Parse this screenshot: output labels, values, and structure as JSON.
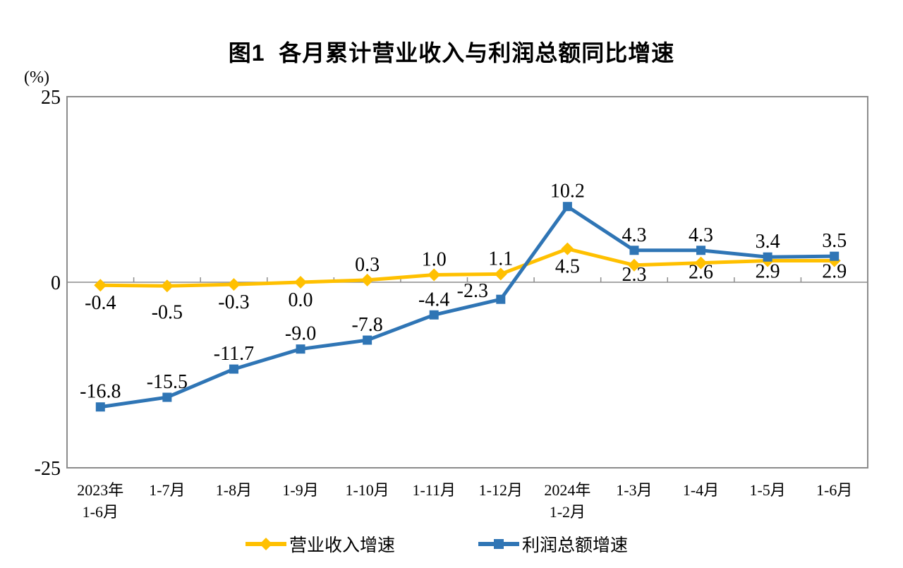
{
  "chart_data": {
    "type": "line",
    "title": "图1  各月累计营业收入与利润总额同比增速",
    "y_unit_label": "(%)",
    "ylim": [
      -25,
      25
    ],
    "yticks": [
      {
        "value": 25,
        "label": "25"
      },
      {
        "value": 0,
        "label": "0"
      },
      {
        "value": -25,
        "label": "-25"
      }
    ],
    "grid": false,
    "legend_position": "bottom",
    "axis_color": "#8C8C8C",
    "categories": [
      {
        "lines": [
          "2023年",
          "1-6月"
        ]
      },
      {
        "lines": [
          "1-7月"
        ]
      },
      {
        "lines": [
          "1-8月"
        ]
      },
      {
        "lines": [
          "1-9月"
        ]
      },
      {
        "lines": [
          "1-10月"
        ]
      },
      {
        "lines": [
          "1-11月"
        ]
      },
      {
        "lines": [
          "1-12月"
        ]
      },
      {
        "lines": [
          "2024年",
          "1-2月"
        ]
      },
      {
        "lines": [
          "1-3月"
        ]
      },
      {
        "lines": [
          "1-4月"
        ]
      },
      {
        "lines": [
          "1-5月"
        ]
      },
      {
        "lines": [
          "1-6月"
        ]
      }
    ],
    "series": [
      {
        "name": "营业收入增速",
        "color": "#FFC000",
        "marker": "diamond",
        "values": [
          -0.4,
          -0.5,
          -0.3,
          0.0,
          0.3,
          1.0,
          1.1,
          4.5,
          2.3,
          2.6,
          2.9,
          2.9
        ],
        "labels": [
          "-0.4",
          "-0.5",
          "-0.3",
          "0.0",
          "0.3",
          "1.0",
          "1.1",
          "4.5",
          "2.3",
          "2.6",
          "2.9",
          "2.9"
        ],
        "label_pos": [
          "below",
          "below",
          "below",
          "below",
          "above",
          "above",
          "above",
          "below",
          "below",
          "below",
          "below",
          "below"
        ],
        "label_offsets": {
          "1": {
            "dy": 12
          },
          "8": {
            "dy": -12
          },
          "9": {
            "dy": -12
          },
          "10": {
            "dy": -10
          },
          "11": {
            "dy": -10
          }
        }
      },
      {
        "name": "利润总额增速",
        "color": "#2F75B5",
        "marker": "square",
        "values": [
          -16.8,
          -15.5,
          -11.7,
          -9.0,
          -7.8,
          -4.4,
          -2.3,
          10.2,
          4.3,
          4.3,
          3.4,
          3.5
        ],
        "labels": [
          "-16.8",
          "-15.5",
          "-11.7",
          "-9.0",
          "-7.8",
          "-4.4",
          "-2.3",
          "10.2",
          "4.3",
          "4.3",
          "3.4",
          "3.5"
        ],
        "label_pos": [
          "above",
          "above",
          "above",
          "above",
          "above",
          "above",
          "above",
          "above",
          "above",
          "above",
          "above",
          "above"
        ],
        "label_offsets": {
          "6": {
            "dx": -40,
            "dy": 10
          }
        }
      }
    ]
  }
}
